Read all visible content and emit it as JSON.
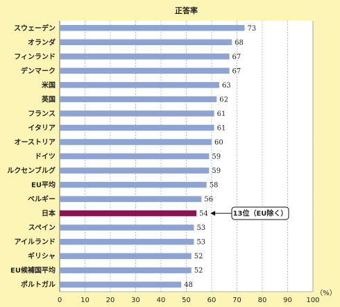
{
  "chart_data": {
    "type": "bar",
    "orientation": "horizontal",
    "title": "正答率",
    "unit": "（%）",
    "categories": [
      "スウェーデン",
      "オランダ",
      "フィンランド",
      "デンマーク",
      "米国",
      "英国",
      "フランス",
      "イタリア",
      "オーストリア",
      "ドイツ",
      "ルクセンブルグ",
      "EU平均",
      "ベルギー",
      "日本",
      "スペイン",
      "アイルランド",
      "ギリシャ",
      "EU候補国平均",
      "ポルトガル"
    ],
    "values": [
      73,
      68,
      67,
      67,
      63,
      62,
      61,
      61,
      60,
      59,
      59,
      58,
      56,
      54,
      53,
      53,
      52,
      52,
      48
    ],
    "xlim": [
      0,
      100
    ],
    "xticks": [
      "0",
      "10",
      "20",
      "30",
      "40",
      "50",
      "60",
      "70",
      "80",
      "90",
      "100"
    ],
    "grid": true,
    "highlight_index": 13,
    "bar_color": "#8ca3d4",
    "highlight_color": "#8b1353",
    "annotation": "13位（EU除く）"
  }
}
